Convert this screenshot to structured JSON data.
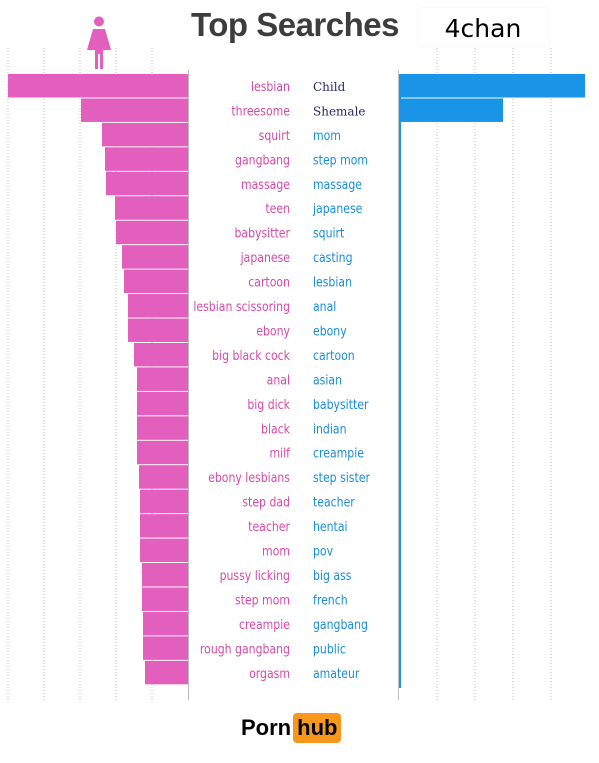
{
  "header": {
    "title": "Top Searches",
    "overlay_label": "4chan"
  },
  "brand": {
    "part1": "Porn",
    "part2": "hub"
  },
  "colors": {
    "female": "#e35fbd",
    "male": "#1a94e6",
    "female_text": "#d64aa8",
    "male_text": "#1a8ed8",
    "overlay_text": "#2a2a66"
  },
  "icons": {
    "female": "female-person-icon"
  },
  "chart_data": [
    {
      "type": "bar",
      "orientation": "horizontal",
      "direction": "right-to-left",
      "series_color": "#e35fbd",
      "categories": [
        "lesbian",
        "threesome",
        "squirt",
        "gangbang",
        "massage",
        "teen",
        "babysitter",
        "japanese",
        "cartoon",
        "lesbian scissoring",
        "ebony",
        "big black cock",
        "anal",
        "big dick",
        "black",
        "milf",
        "ebony lesbians",
        "step dad",
        "teacher",
        "mom",
        "pussy licking",
        "step mom",
        "creampie",
        "rough gangbang",
        "orgasm"
      ],
      "values": [
        180,
        107,
        86,
        83,
        82,
        73,
        72,
        66,
        64,
        60,
        60,
        54,
        51,
        51,
        51,
        51,
        49,
        48,
        48,
        48,
        46,
        46,
        45,
        45,
        43
      ],
      "xlim": [
        0,
        180
      ],
      "grid": true
    },
    {
      "type": "bar",
      "orientation": "horizontal",
      "direction": "left-to-right",
      "series_color": "#1a94e6",
      "categories": [
        "Child",
        "Shemale",
        "mom",
        "step mom",
        "massage",
        "japanese",
        "squirt",
        "casting",
        "lesbian",
        "anal",
        "ebony",
        "cartoon",
        "asian",
        "babysitter",
        "indian",
        "creampie",
        "step sister",
        "teacher",
        "hentai",
        "pov",
        "big ass",
        "french",
        "gangbang",
        "public",
        "amateur"
      ],
      "values": [
        186,
        104,
        null,
        null,
        null,
        null,
        null,
        null,
        null,
        null,
        null,
        null,
        null,
        null,
        null,
        null,
        null,
        null,
        null,
        null,
        null,
        null,
        null,
        null,
        null
      ],
      "xlim": [
        0,
        190
      ],
      "grid": true
    }
  ]
}
